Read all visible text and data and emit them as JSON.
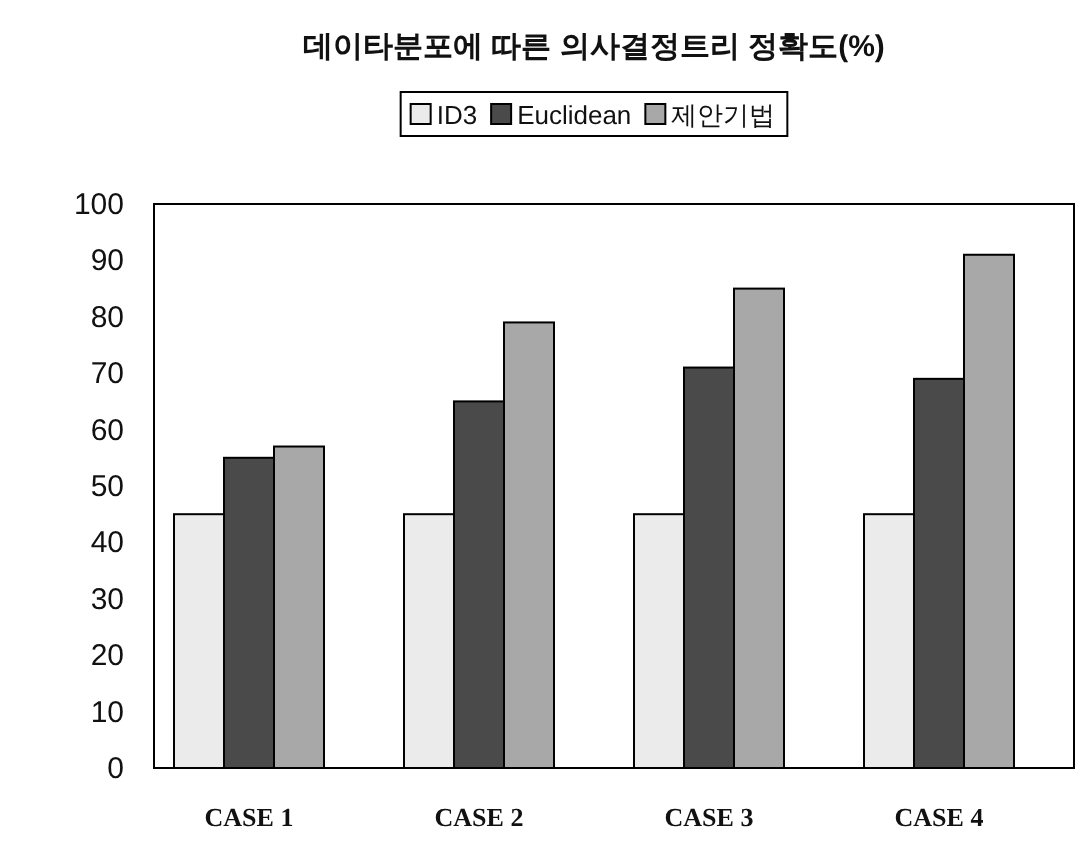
{
  "chart_data": {
    "type": "bar",
    "title": "데이타분포에 따른 의사결정트리 정확도(%)",
    "categories": [
      "CASE 1",
      "CASE 2",
      "CASE 3",
      "CASE 4"
    ],
    "series": [
      {
        "name": "ID3",
        "color": "#ebebeb",
        "values": [
          45,
          45,
          45,
          45
        ]
      },
      {
        "name": "Euclidean",
        "color": "#4a4a4a",
        "values": [
          55,
          65,
          71,
          69
        ]
      },
      {
        "name": "제안기법",
        "color": "#a8a8a8",
        "values": [
          57,
          79,
          85,
          91
        ]
      }
    ],
    "ylim": [
      0,
      100
    ],
    "yticks": [
      0,
      10,
      20,
      30,
      40,
      50,
      60,
      70,
      80,
      90,
      100
    ],
    "grid": false,
    "legend": "top"
  }
}
